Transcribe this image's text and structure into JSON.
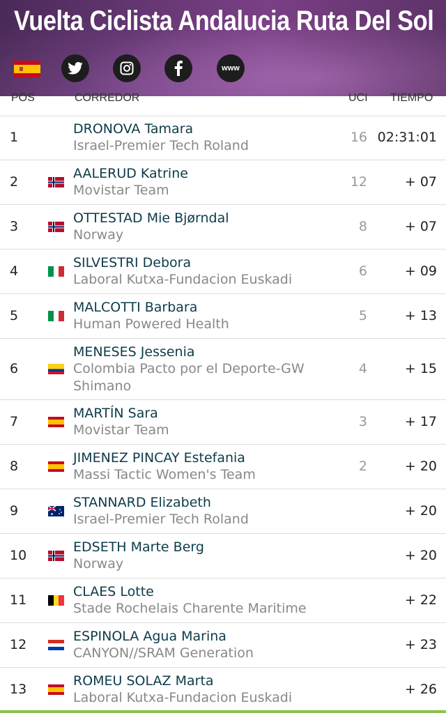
{
  "race": {
    "title": "Vuelta Ciclista Andalucia Ruta Del Sol",
    "country_flag": "spain-flag-icon",
    "social": [
      "twitter-icon",
      "instagram-icon",
      "facebook-icon",
      "website-icon"
    ],
    "www_label": "www"
  },
  "columns": {
    "pos": "POS",
    "rider": "CORREDOR",
    "uci": "UCI",
    "time": "TIEMPO"
  },
  "results": [
    {
      "pos": "1",
      "flag": "",
      "name": "DRONOVA Tamara",
      "team": "Israel-Premier Tech Roland",
      "uci": "16",
      "time": "02:31:01",
      "h": 64
    },
    {
      "pos": "2",
      "flag": "no",
      "name": "AALERUD Katrine",
      "team": "Movistar Team",
      "uci": "12",
      "time": "+ 07",
      "h": 64
    },
    {
      "pos": "3",
      "flag": "no",
      "name": "OTTESTAD Mie Bjørndal",
      "team": "Norway",
      "uci": "8",
      "time": "+ 07",
      "h": 64
    },
    {
      "pos": "4",
      "flag": "it",
      "name": "SILVESTRI Debora",
      "team": "Laboral Kutxa-Fundacion Euskadi",
      "uci": "6",
      "time": "+ 09",
      "h": 64
    },
    {
      "pos": "5",
      "flag": "it",
      "name": "MALCOTTI Barbara",
      "team": "Human Powered Health",
      "uci": "5",
      "time": "+ 13",
      "h": 64
    },
    {
      "pos": "6",
      "flag": "co",
      "name": "MENESES Jessenia",
      "team": "Colombia Pacto por el Deporte-GW Shimano",
      "uci": "4",
      "time": "+ 15",
      "h": 88
    },
    {
      "pos": "7",
      "flag": "es",
      "name": "MARTÍN Sara",
      "team": "Movistar Team",
      "uci": "3",
      "time": "+ 17",
      "h": 64
    },
    {
      "pos": "8",
      "flag": "es",
      "name": "JIMENEZ PINCAY Estefania",
      "team": "Massi Tactic Women's Team",
      "uci": "2",
      "time": "+ 20",
      "h": 64
    },
    {
      "pos": "9",
      "flag": "au",
      "name": "STANNARD Elizabeth",
      "team": "Israel-Premier Tech Roland",
      "uci": "",
      "time": "+ 20",
      "h": 64
    },
    {
      "pos": "10",
      "flag": "no",
      "name": "EDSETH Marte Berg",
      "team": "Norway",
      "uci": "",
      "time": "+ 20",
      "h": 64
    },
    {
      "pos": "11",
      "flag": "be",
      "name": "CLAES Lotte",
      "team": "Stade Rochelais Charente Maritime",
      "uci": "",
      "time": "+ 22",
      "h": 64
    },
    {
      "pos": "12",
      "flag": "py",
      "name": "ESPINOLA Agua Marina",
      "team": "CANYON//SRAM Generation",
      "uci": "",
      "time": "+ 23",
      "h": 64
    },
    {
      "pos": "13",
      "flag": "es",
      "name": "ROMEU SOLAZ Marta",
      "team": "Laboral Kutxa-Fundacion Euskadi",
      "uci": "",
      "time": "+ 26",
      "h": 64
    }
  ]
}
